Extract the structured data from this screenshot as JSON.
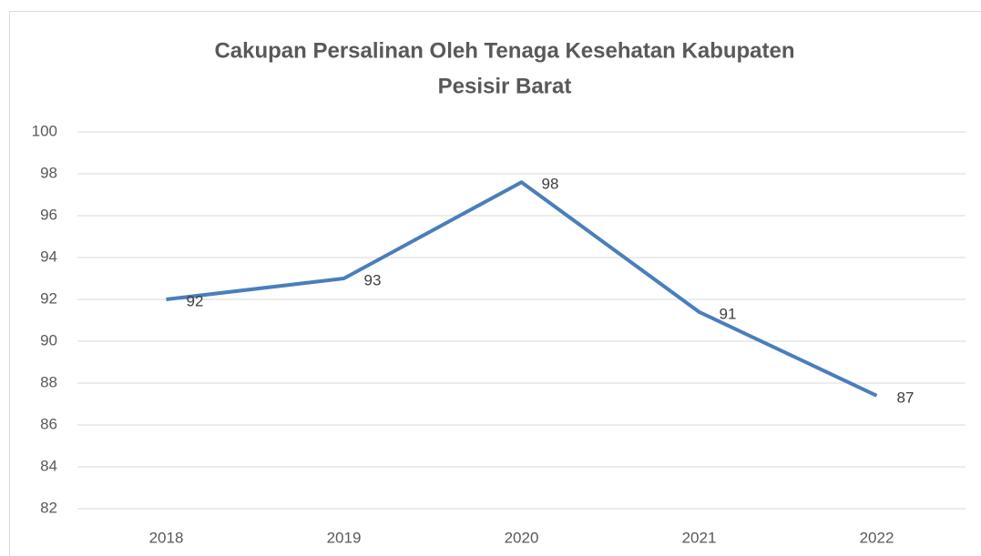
{
  "chart_data": {
    "type": "line",
    "title": [
      "Cakupan Persalinan Oleh Tenaga Kesehatan Kabupaten",
      "Pesisir Barat"
    ],
    "categories": [
      "2018",
      "2019",
      "2020",
      "2021",
      "2022"
    ],
    "series": [
      {
        "color": "#4a7ebb",
        "values": [
          92,
          93,
          97.6,
          91.4,
          87.4
        ],
        "value_labels": [
          "92",
          "93",
          "98",
          "91",
          "87"
        ]
      }
    ],
    "ylim": [
      82,
      100
    ],
    "yticks": [
      82,
      84,
      86,
      88,
      90,
      92,
      94,
      96,
      98,
      100
    ],
    "grid": true
  }
}
